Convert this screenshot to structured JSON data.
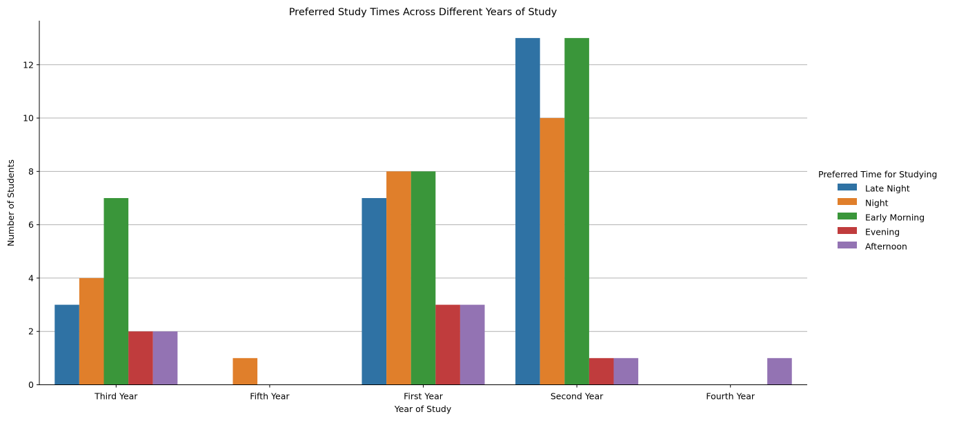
{
  "chart_data": {
    "type": "bar",
    "title": "Preferred Study Times Across Different Years of Study",
    "xlabel": "Year of Study",
    "ylabel": "Number of Students",
    "categories": [
      "Third Year",
      "Fifth Year",
      "First Year",
      "Second Year",
      "Fourth Year"
    ],
    "series": [
      {
        "name": "Late Night",
        "color": "#2f72a4",
        "values": [
          3,
          0,
          7,
          13,
          0
        ]
      },
      {
        "name": "Night",
        "color": "#e07f2b",
        "values": [
          4,
          1,
          8,
          10,
          0
        ]
      },
      {
        "name": "Early Morning",
        "color": "#3a963a",
        "values": [
          7,
          0,
          8,
          13,
          0
        ]
      },
      {
        "name": "Evening",
        "color": "#c03c3d",
        "values": [
          2,
          0,
          3,
          1,
          0
        ]
      },
      {
        "name": "Afternoon",
        "color": "#9373b3",
        "values": [
          2,
          0,
          3,
          1,
          1
        ]
      }
    ],
    "ylim": [
      0,
      13.65
    ],
    "yticks": [
      0,
      2,
      4,
      6,
      8,
      10,
      12
    ],
    "grid": "y",
    "legend": {
      "title": "Preferred Time for Studying",
      "position": "right"
    }
  }
}
